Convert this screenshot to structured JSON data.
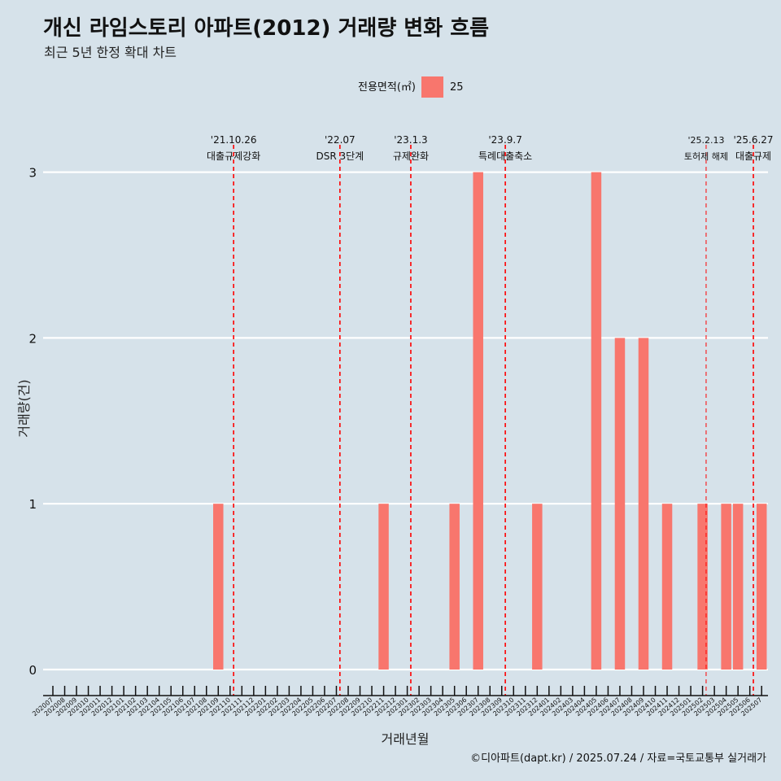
{
  "title": "개신 라임스토리 아파트(2012) 거래량 변화 흐름",
  "subtitle": "최근 5년 한정 확대 차트",
  "legend": {
    "title": "전용면적(㎡)",
    "label": "25"
  },
  "caption": "©디아파트(dapt.kr) / 2025.07.24 / 자료=국토교통부 실거래가",
  "colors": {
    "background": "#d6e2ea",
    "bar": "#f8766d",
    "event_line": "#ff0000",
    "grid": "#ffffff"
  },
  "chart_data": {
    "type": "bar",
    "xlabel": "거래년월",
    "ylabel": "거래량(건)",
    "ylim": [
      0,
      3
    ],
    "yticks": [
      0,
      1,
      2,
      3
    ],
    "grid": "horizontal major lines",
    "legend_position": "top",
    "categories": [
      "202007",
      "202008",
      "202009",
      "202010",
      "202011",
      "202012",
      "202101",
      "202102",
      "202103",
      "202104",
      "202105",
      "202106",
      "202107",
      "202108",
      "202109",
      "202110",
      "202111",
      "202112",
      "202201",
      "202202",
      "202203",
      "202204",
      "202205",
      "202206",
      "202207",
      "202208",
      "202209",
      "202210",
      "202211",
      "202212",
      "202301",
      "202302",
      "202303",
      "202304",
      "202305",
      "202306",
      "202307",
      "202308",
      "202309",
      "202310",
      "202311",
      "202312",
      "202401",
      "202402",
      "202403",
      "202404",
      "202405",
      "202406",
      "202407",
      "202408",
      "202409",
      "202410",
      "202411",
      "202412",
      "202501",
      "202502",
      "202503",
      "202504",
      "202505",
      "202506",
      "202507"
    ],
    "series": [
      {
        "name": "25",
        "values": [
          0,
          0,
          0,
          0,
          0,
          0,
          0,
          0,
          0,
          0,
          0,
          0,
          0,
          0,
          1,
          0,
          0,
          0,
          0,
          0,
          0,
          0,
          0,
          0,
          0,
          0,
          0,
          0,
          1,
          0,
          0,
          0,
          0,
          0,
          1,
          0,
          3,
          0,
          0,
          0,
          0,
          1,
          0,
          0,
          0,
          0,
          3,
          0,
          2,
          0,
          2,
          0,
          1,
          0,
          0,
          1,
          0,
          1,
          1,
          0,
          1
        ]
      }
    ],
    "events": [
      {
        "date": "'21.10.26",
        "label": "대출규제강화",
        "x": 15.3
      },
      {
        "date": "'22.07",
        "label": "DSR 3단계",
        "x": 24.3
      },
      {
        "date": "'23.1.3",
        "label": "규제완화",
        "x": 30.3
      },
      {
        "date": "'23.9.7",
        "label": "특례대출축소",
        "x": 38.3
      },
      {
        "date": "'25.2.13",
        "label": "토허제 해제",
        "x": 55.3,
        "small": true
      },
      {
        "date": "'25.6.27",
        "label": "대출규제",
        "x": 59.3
      }
    ]
  }
}
